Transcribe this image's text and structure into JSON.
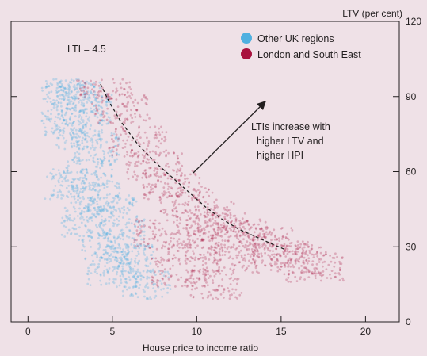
{
  "chart_data": {
    "type": "scatter",
    "title": "",
    "xlabel": "House price to income ratio",
    "ylabel": "LTV (per cent)",
    "xlim": [
      -1,
      22
    ],
    "ylim": [
      0,
      120
    ],
    "xticks": [
      0,
      5,
      10,
      15,
      20
    ],
    "yticks": [
      0,
      30,
      60,
      90,
      120
    ],
    "grid": false,
    "legend_position": "top-right",
    "series": [
      {
        "name": "Other UK regions",
        "color": "#4fb0e0",
        "description_points": [
          [
            1.5,
            95
          ],
          [
            2.5,
            92
          ],
          [
            3,
            90
          ],
          [
            3.5,
            85
          ],
          [
            2,
            80
          ],
          [
            3,
            75
          ],
          [
            4,
            70
          ],
          [
            3.5,
            60
          ],
          [
            2.5,
            55
          ],
          [
            4,
            50
          ],
          [
            5,
            45
          ],
          [
            3.5,
            40
          ],
          [
            5.5,
            35
          ],
          [
            4.5,
            30
          ],
          [
            6,
            25
          ],
          [
            5,
            20
          ],
          [
            7,
            15
          ]
        ]
      },
      {
        "name": "London and South East",
        "color": "#a8123e",
        "description_points": [
          [
            4.5,
            95
          ],
          [
            5.5,
            85
          ],
          [
            6.5,
            72
          ],
          [
            7.5,
            62
          ],
          [
            8.5,
            55
          ],
          [
            9.5,
            48
          ],
          [
            10.5,
            42
          ],
          [
            11.5,
            38
          ],
          [
            12.5,
            35
          ],
          [
            14,
            32
          ],
          [
            15,
            28
          ],
          [
            16,
            25
          ],
          [
            17,
            22
          ],
          [
            8,
            35
          ],
          [
            10,
            30
          ],
          [
            12,
            25
          ],
          [
            9,
            20
          ],
          [
            11,
            15
          ]
        ]
      }
    ],
    "lti_curve": {
      "label": "LTI = 4.5",
      "points": [
        [
          4.3,
          95
        ],
        [
          4.8,
          88
        ],
        [
          5.5,
          80
        ],
        [
          6.5,
          71
        ],
        [
          7.5,
          64
        ],
        [
          8.5,
          58
        ],
        [
          9.5,
          52
        ],
        [
          10.5,
          46
        ],
        [
          11.5,
          41
        ],
        [
          12.5,
          37
        ],
        [
          13.5,
          34
        ],
        [
          14.5,
          31
        ],
        [
          15.2,
          29
        ]
      ]
    },
    "annotations": [
      {
        "text": [
          "LTIs increase with",
          "higher LTV and",
          "higher HPI"
        ]
      }
    ]
  },
  "colors": {
    "background": "#efe1e7",
    "axis": "#231f20",
    "blue": "#4fb0e0",
    "red": "#a8123e"
  }
}
